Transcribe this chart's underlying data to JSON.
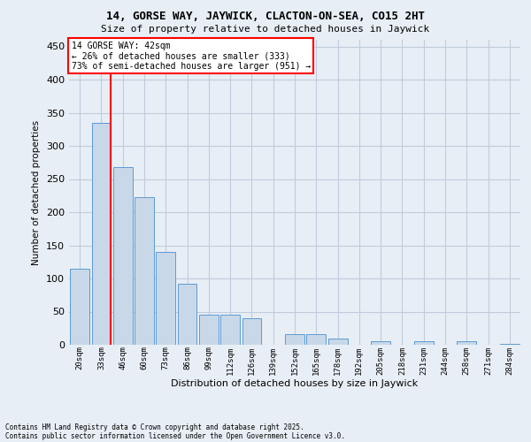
{
  "title1": "14, GORSE WAY, JAYWICK, CLACTON-ON-SEA, CO15 2HT",
  "title2": "Size of property relative to detached houses in Jaywick",
  "xlabel": "Distribution of detached houses by size in Jaywick",
  "ylabel": "Number of detached properties",
  "categories": [
    "20sqm",
    "33sqm",
    "46sqm",
    "60sqm",
    "73sqm",
    "86sqm",
    "99sqm",
    "112sqm",
    "126sqm",
    "139sqm",
    "152sqm",
    "165sqm",
    "178sqm",
    "192sqm",
    "205sqm",
    "218sqm",
    "231sqm",
    "244sqm",
    "258sqm",
    "271sqm",
    "284sqm"
  ],
  "values": [
    115,
    335,
    268,
    223,
    140,
    92,
    45,
    45,
    40,
    0,
    16,
    16,
    9,
    0,
    6,
    0,
    5,
    0,
    6,
    0,
    1
  ],
  "bar_color": "#c8d8e8",
  "bar_edge_color": "#5b9bd5",
  "grid_color": "#c0ccdd",
  "background_color": "#e8eef5",
  "vline_color": "red",
  "annotation_text": "14 GORSE WAY: 42sqm\n← 26% of detached houses are smaller (333)\n73% of semi-detached houses are larger (951) →",
  "annotation_box_color": "white",
  "annotation_edge_color": "red",
  "footnote1": "Contains HM Land Registry data © Crown copyright and database right 2025.",
  "footnote2": "Contains public sector information licensed under the Open Government Licence v3.0.",
  "ylim": [
    0,
    460
  ],
  "yticks": [
    0,
    50,
    100,
    150,
    200,
    250,
    300,
    350,
    400,
    450
  ]
}
